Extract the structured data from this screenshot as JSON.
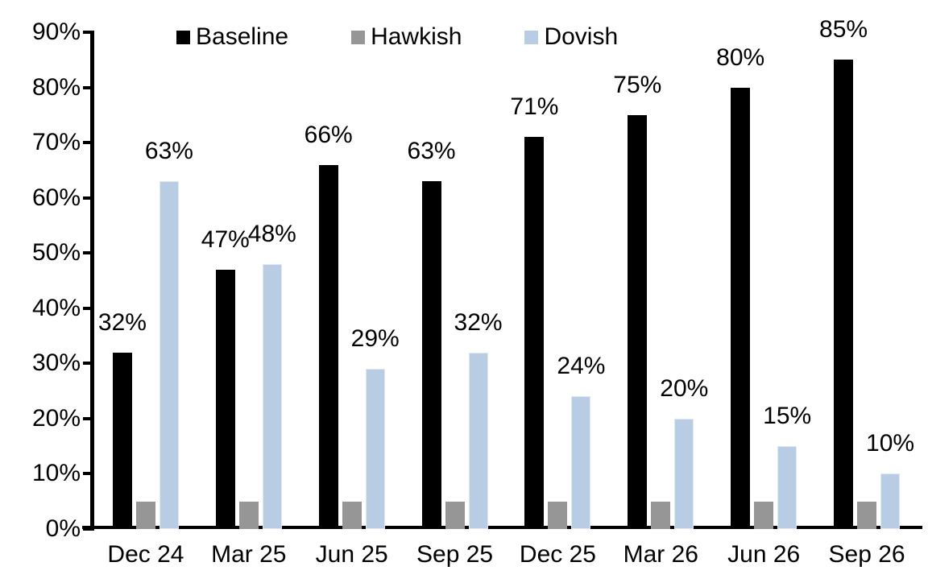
{
  "chart_data": {
    "type": "bar",
    "title": "",
    "xlabel": "",
    "ylabel": "",
    "categories": [
      "Dec 24",
      "Mar 25",
      "Jun 25",
      "Sep 25",
      "Dec 25",
      "Mar 26",
      "Jun 26",
      "Sep 26"
    ],
    "series": [
      {
        "name": "Baseline",
        "color": "#000000",
        "values": [
          32,
          47,
          66,
          63,
          71,
          75,
          80,
          85
        ],
        "show_labels": true,
        "data_labels": [
          "32%",
          "47%",
          "66%",
          "63%",
          "71%",
          "75%",
          "80%",
          "85%"
        ]
      },
      {
        "name": "Hawkish",
        "color": "#969696",
        "values": [
          5,
          5,
          5,
          5,
          5,
          5,
          5,
          5
        ],
        "show_labels": false,
        "data_labels": []
      },
      {
        "name": "Dovish",
        "color": "#b8cce4",
        "values": [
          63,
          48,
          29,
          32,
          24,
          20,
          15,
          10
        ],
        "show_labels": true,
        "data_labels": [
          "63%",
          "48%",
          "29%",
          "32%",
          "24%",
          "20%",
          "15%",
          "10%"
        ]
      }
    ],
    "ylim": [
      0,
      90
    ],
    "ytick_step": 10,
    "ytick_labels": [
      "0%",
      "10%",
      "20%",
      "30%",
      "40%",
      "50%",
      "60%",
      "70%",
      "80%",
      "90%"
    ],
    "grid": false,
    "legend_position": "top",
    "axis_color": "#000000",
    "text_color": "#000000",
    "background_color": "#ffffff"
  }
}
